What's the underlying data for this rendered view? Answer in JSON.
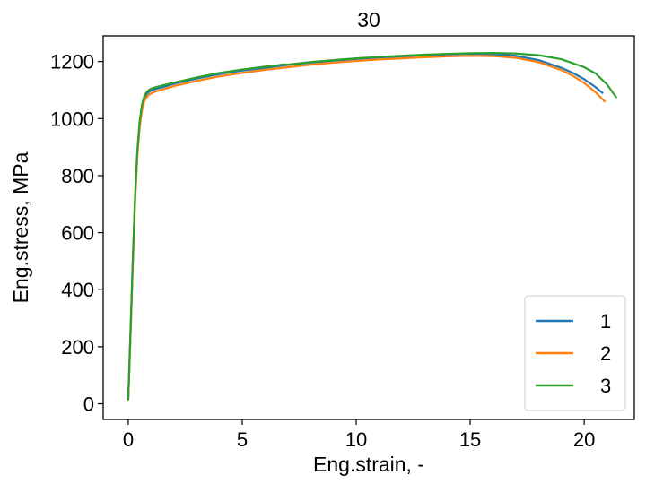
{
  "chart_data": {
    "type": "line",
    "title": "30",
    "xlabel": "Eng.strain, -",
    "ylabel": "Eng.stress, MPa",
    "xlim": [
      -1.1,
      22.2
    ],
    "ylim": [
      -55,
      1290
    ],
    "xticks": [
      0,
      5,
      10,
      15,
      20
    ],
    "yticks": [
      0,
      200,
      400,
      600,
      800,
      1000,
      1200
    ],
    "grid": false,
    "legend_position": "lower-right",
    "series": [
      {
        "name": "1",
        "color": "#1f77b4",
        "x": [
          0,
          0.1,
          0.2,
          0.3,
          0.4,
          0.5,
          0.6,
          0.7,
          0.8,
          0.9,
          1.0,
          1.2,
          1.5,
          2,
          3,
          4,
          5,
          6,
          7,
          8,
          9,
          10,
          11,
          12,
          13,
          14,
          15,
          16,
          17,
          18,
          19,
          19.5,
          20,
          20.5,
          20.8
        ],
        "y": [
          15,
          250,
          500,
          720,
          880,
          980,
          1040,
          1070,
          1085,
          1093,
          1098,
          1104,
          1110,
          1122,
          1140,
          1156,
          1168,
          1178,
          1188,
          1196,
          1203,
          1209,
          1214,
          1218,
          1222,
          1225,
          1227,
          1226,
          1220,
          1205,
          1178,
          1160,
          1138,
          1110,
          1090
        ]
      },
      {
        "name": "2",
        "color": "#ff7f0e",
        "x": [
          0,
          0.1,
          0.2,
          0.3,
          0.4,
          0.5,
          0.6,
          0.7,
          0.8,
          0.9,
          1.0,
          1.2,
          1.5,
          2,
          3,
          4,
          5,
          6,
          7,
          8,
          9,
          10,
          11,
          12,
          13,
          14,
          15,
          16,
          17,
          18,
          19,
          19.5,
          20,
          20.5,
          20.9
        ],
        "y": [
          15,
          240,
          490,
          710,
          870,
          970,
          1030,
          1060,
          1075,
          1083,
          1088,
          1095,
          1102,
          1114,
          1132,
          1148,
          1160,
          1171,
          1180,
          1189,
          1196,
          1202,
          1207,
          1211,
          1215,
          1218,
          1220,
          1219,
          1213,
          1198,
          1170,
          1150,
          1125,
          1092,
          1060
        ]
      },
      {
        "name": "3",
        "color": "#2ca02c",
        "x": [
          0,
          0.1,
          0.2,
          0.3,
          0.4,
          0.5,
          0.6,
          0.7,
          0.8,
          0.9,
          1.0,
          1.2,
          1.5,
          2,
          3,
          4,
          5,
          6,
          6.5,
          6.8,
          7,
          8,
          9,
          10,
          11,
          12,
          13,
          14,
          15,
          16,
          17,
          18,
          19,
          20,
          20.5,
          21,
          21.4
        ],
        "y": [
          15,
          260,
          510,
          730,
          890,
          990,
          1048,
          1078,
          1092,
          1100,
          1105,
          1110,
          1116,
          1126,
          1144,
          1160,
          1172,
          1182,
          1186,
          1190,
          1189,
          1198,
          1205,
          1211,
          1216,
          1220,
          1224,
          1227,
          1229,
          1230,
          1228,
          1222,
          1208,
          1180,
          1158,
          1120,
          1075
        ]
      }
    ]
  }
}
